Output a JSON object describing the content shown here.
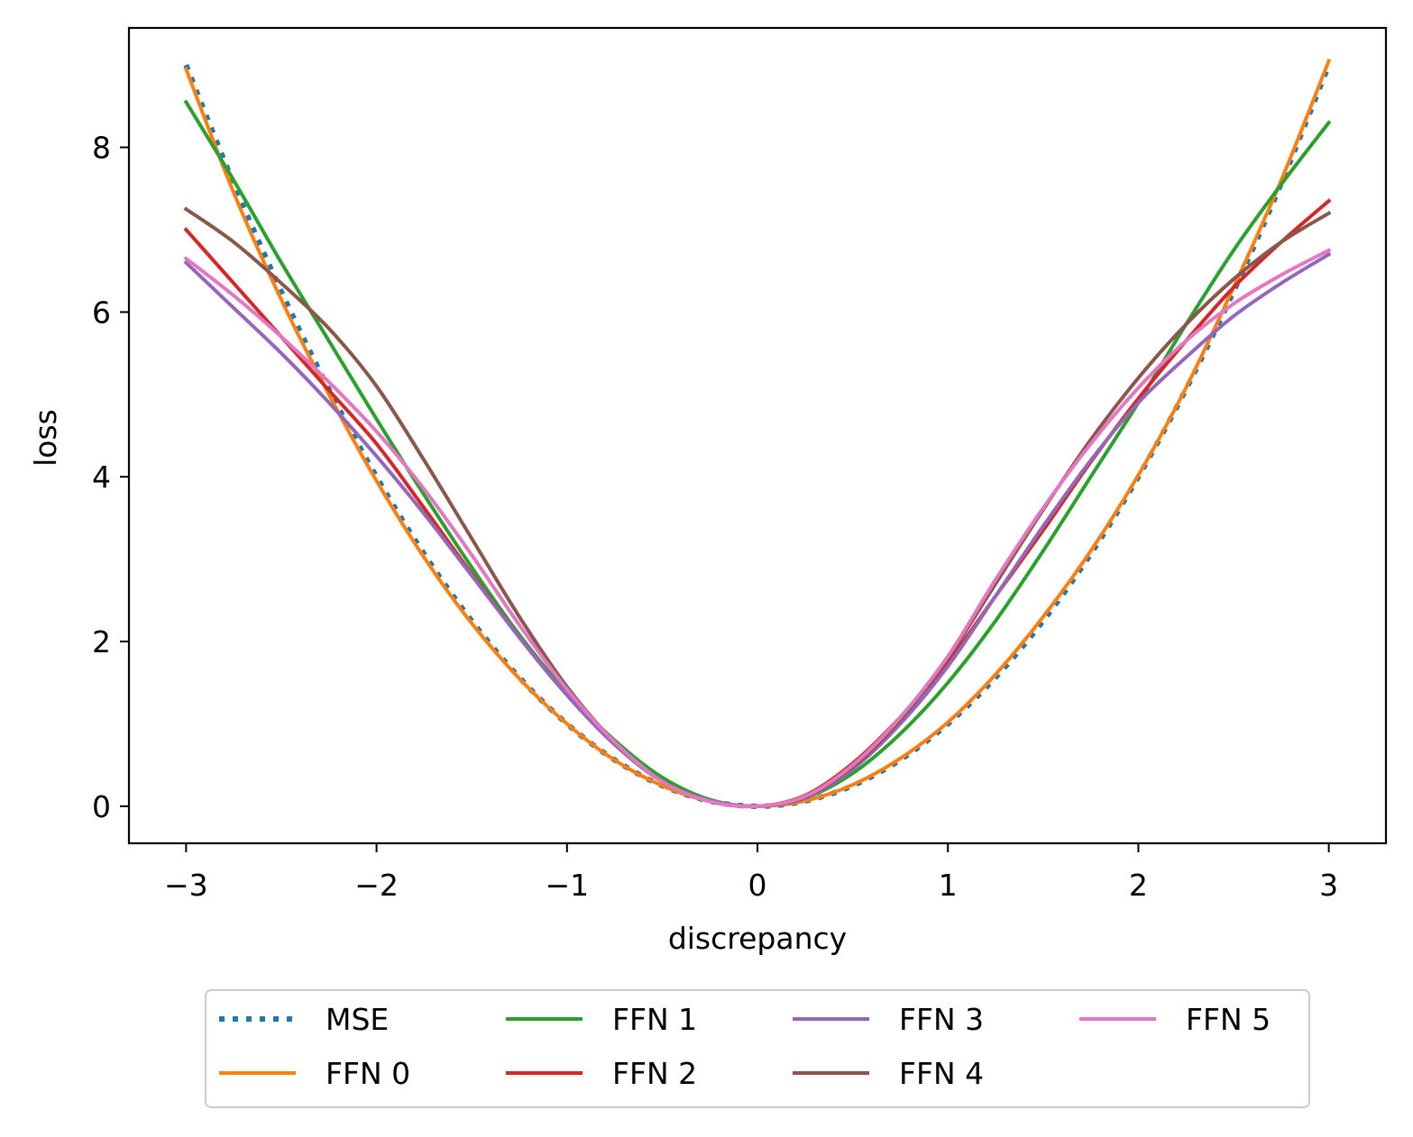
{
  "chart_data": {
    "type": "line",
    "title": "",
    "xlabel": "discrepancy",
    "ylabel": "loss",
    "xlim": [
      -3.3,
      3.3
    ],
    "ylim": [
      -0.45,
      9.45
    ],
    "xticks": [
      -3,
      -2,
      -1,
      0,
      1,
      2,
      3
    ],
    "xtick_labels": [
      "−3",
      "−2",
      "−1",
      "0",
      "1",
      "2",
      "3"
    ],
    "yticks": [
      0,
      2,
      4,
      6,
      8
    ],
    "ytick_labels": [
      "0",
      "2",
      "4",
      "6",
      "8"
    ],
    "grid": false,
    "legend_position": "below",
    "legend_columns": 4,
    "x": [
      -3.0,
      -2.75,
      -2.5,
      -2.25,
      -2.0,
      -1.75,
      -1.5,
      -1.25,
      -1.0,
      -0.75,
      -0.5,
      -0.25,
      0.0,
      0.25,
      0.5,
      0.75,
      1.0,
      1.25,
      1.5,
      1.75,
      2.0,
      2.25,
      2.5,
      2.75,
      3.0
    ],
    "series": [
      {
        "name": "MSE",
        "color": "#1f77b4",
        "style": "dotted",
        "values": [
          9.0,
          7.5625,
          6.25,
          5.0625,
          4.0,
          3.0625,
          2.25,
          1.5625,
          1.0,
          0.5625,
          0.25,
          0.0625,
          0.0,
          0.0625,
          0.25,
          0.5625,
          1.0,
          1.5625,
          2.25,
          3.0625,
          4.0,
          5.0625,
          6.25,
          7.5625,
          9.0
        ]
      },
      {
        "name": "FFN 0",
        "color": "#ff7f0e",
        "style": "solid",
        "values": [
          8.95,
          7.45,
          6.15,
          5.0,
          3.95,
          3.02,
          2.22,
          1.55,
          1.0,
          0.56,
          0.25,
          0.06,
          0.0,
          0.065,
          0.26,
          0.58,
          1.02,
          1.6,
          2.3,
          3.1,
          4.02,
          5.08,
          6.3,
          7.6,
          9.05
        ]
      },
      {
        "name": "FFN 1",
        "color": "#2ca02c",
        "style": "solid",
        "values": [
          8.55,
          7.6,
          6.6,
          5.65,
          4.7,
          3.78,
          2.9,
          2.08,
          1.38,
          0.8,
          0.35,
          0.08,
          0.0,
          0.1,
          0.4,
          0.88,
          1.5,
          2.25,
          3.1,
          4.0,
          4.9,
          5.85,
          6.75,
          7.55,
          8.3
        ]
      },
      {
        "name": "FFN 2",
        "color": "#d62728",
        "style": "solid",
        "values": [
          7.0,
          6.35,
          5.7,
          5.05,
          4.4,
          3.62,
          2.82,
          2.05,
          1.35,
          0.75,
          0.3,
          0.06,
          0.0,
          0.13,
          0.52,
          1.08,
          1.75,
          2.55,
          3.35,
          4.18,
          4.95,
          5.65,
          6.3,
          6.85,
          7.35
        ]
      },
      {
        "name": "FFN 3",
        "color": "#9467bd",
        "style": "solid",
        "values": [
          6.6,
          6.05,
          5.5,
          4.9,
          4.25,
          3.55,
          2.8,
          2.05,
          1.35,
          0.75,
          0.3,
          0.07,
          0.0,
          0.1,
          0.45,
          1.0,
          1.7,
          2.55,
          3.4,
          4.2,
          4.9,
          5.45,
          5.95,
          6.35,
          6.7
        ]
      },
      {
        "name": "FFN 4",
        "color": "#8c564b",
        "style": "solid",
        "values": [
          7.25,
          6.85,
          6.35,
          5.8,
          5.1,
          4.2,
          3.25,
          2.3,
          1.45,
          0.78,
          0.3,
          0.06,
          0.0,
          0.11,
          0.48,
          1.05,
          1.8,
          2.7,
          3.6,
          4.45,
          5.2,
          5.85,
          6.4,
          6.85,
          7.2
        ]
      },
      {
        "name": "FFN 5",
        "color": "#e377c2",
        "style": "solid",
        "values": [
          6.65,
          6.2,
          5.7,
          5.15,
          4.55,
          3.85,
          3.05,
          2.2,
          1.42,
          0.78,
          0.3,
          0.06,
          0.0,
          0.12,
          0.5,
          1.08,
          1.82,
          2.75,
          3.62,
          4.4,
          5.08,
          5.65,
          6.1,
          6.45,
          6.75
        ]
      }
    ]
  }
}
